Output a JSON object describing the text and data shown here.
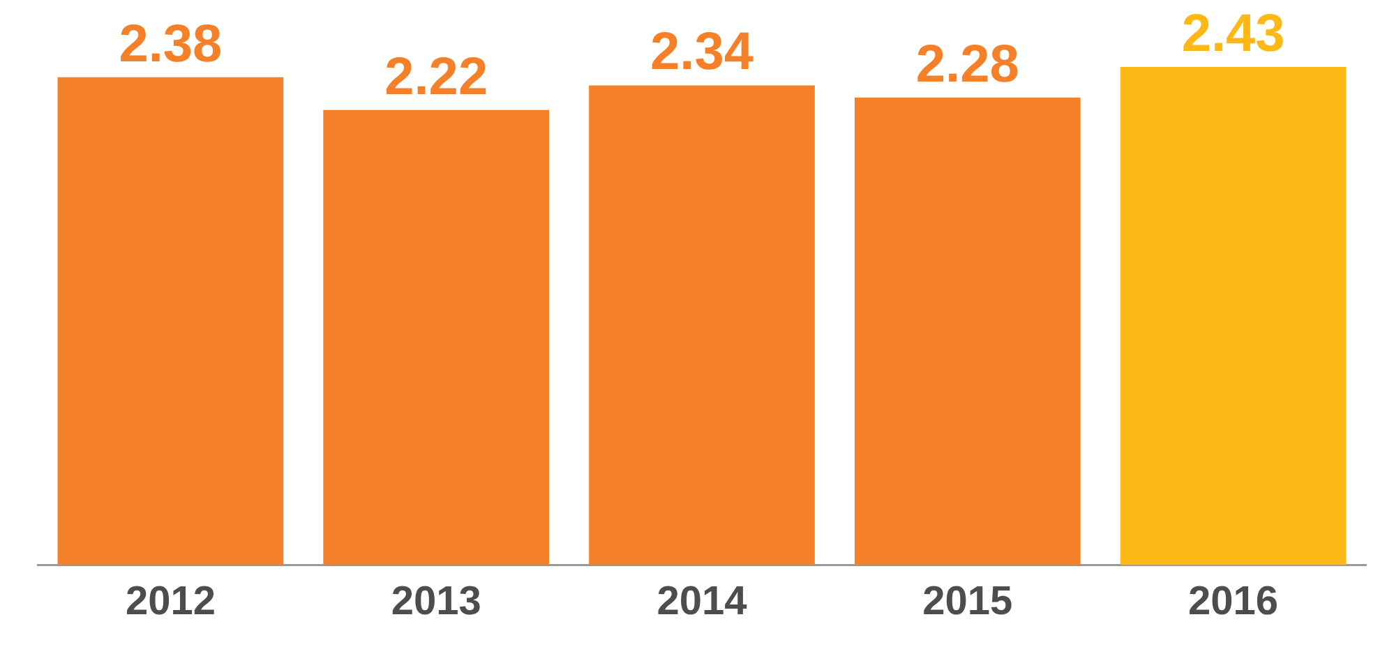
{
  "chart_data": {
    "type": "bar",
    "categories": [
      "2012",
      "2013",
      "2014",
      "2015",
      "2016"
    ],
    "values": [
      2.38,
      2.22,
      2.34,
      2.28,
      2.43
    ],
    "colors": [
      "#f4802a",
      "#f4802a",
      "#f4802a",
      "#f4802a",
      "#fbb817"
    ],
    "data_labels": true,
    "tick_labels": "x",
    "grid": false,
    "legend": false
  }
}
